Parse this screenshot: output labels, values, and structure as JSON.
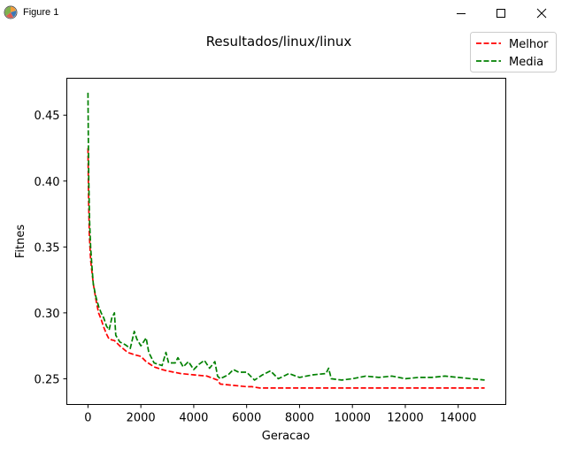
{
  "window": {
    "title": "Figure 1",
    "icon": "matplotlib-logo-icon",
    "controls": [
      "minimize-icon",
      "maximize-icon",
      "close-icon"
    ]
  },
  "chart_data": {
    "type": "line",
    "title": "Resultados/linux/linux",
    "xlabel": "Geracao",
    "ylabel": "Fitnes",
    "xlim": [
      -800,
      15800
    ],
    "ylim": [
      0.2305,
      0.478
    ],
    "xticks": [
      0,
      2000,
      4000,
      6000,
      8000,
      10000,
      12000,
      14000
    ],
    "yticks": [
      0.25,
      0.3,
      0.35,
      0.4,
      0.45
    ],
    "ytick_labels": [
      "0.25",
      "0.30",
      "0.35",
      "0.40",
      "0.45"
    ],
    "grid": false,
    "legend_position": "top-right",
    "series": [
      {
        "name": "Melhor",
        "color": "#ff0000",
        "style": "dashed",
        "points": [
          [
            0,
            0.425
          ],
          [
            20,
            0.39
          ],
          [
            50,
            0.36
          ],
          [
            100,
            0.34
          ],
          [
            200,
            0.322
          ],
          [
            300,
            0.31
          ],
          [
            400,
            0.3
          ],
          [
            500,
            0.295
          ],
          [
            600,
            0.289
          ],
          [
            700,
            0.284
          ],
          [
            800,
            0.28
          ],
          [
            1000,
            0.279
          ],
          [
            1200,
            0.275
          ],
          [
            1500,
            0.27
          ],
          [
            1800,
            0.268
          ],
          [
            2000,
            0.267
          ],
          [
            2200,
            0.263
          ],
          [
            2500,
            0.259
          ],
          [
            2800,
            0.257
          ],
          [
            3000,
            0.256
          ],
          [
            3500,
            0.254
          ],
          [
            4000,
            0.253
          ],
          [
            4500,
            0.252
          ],
          [
            4900,
            0.249
          ],
          [
            5000,
            0.246
          ],
          [
            5500,
            0.245
          ],
          [
            6000,
            0.244
          ],
          [
            6200,
            0.244
          ],
          [
            6500,
            0.243
          ],
          [
            7000,
            0.243
          ],
          [
            8000,
            0.243
          ],
          [
            9000,
            0.243
          ],
          [
            10000,
            0.243
          ],
          [
            11000,
            0.243
          ],
          [
            12000,
            0.243
          ],
          [
            13000,
            0.243
          ],
          [
            14000,
            0.243
          ],
          [
            15000,
            0.243
          ]
        ]
      },
      {
        "name": "Media",
        "color": "#008000",
        "style": "dashed",
        "points": [
          [
            0,
            0.467
          ],
          [
            10,
            0.44
          ],
          [
            30,
            0.4
          ],
          [
            60,
            0.37
          ],
          [
            100,
            0.35
          ],
          [
            150,
            0.335
          ],
          [
            200,
            0.322
          ],
          [
            300,
            0.312
          ],
          [
            400,
            0.305
          ],
          [
            500,
            0.3
          ],
          [
            600,
            0.296
          ],
          [
            700,
            0.29
          ],
          [
            800,
            0.287
          ],
          [
            900,
            0.296
          ],
          [
            1000,
            0.3
          ],
          [
            1050,
            0.283
          ],
          [
            1200,
            0.278
          ],
          [
            1400,
            0.276
          ],
          [
            1600,
            0.273
          ],
          [
            1750,
            0.286
          ],
          [
            1850,
            0.28
          ],
          [
            2000,
            0.275
          ],
          [
            2100,
            0.278
          ],
          [
            2200,
            0.281
          ],
          [
            2300,
            0.27
          ],
          [
            2500,
            0.262
          ],
          [
            2800,
            0.26
          ],
          [
            2950,
            0.27
          ],
          [
            3050,
            0.262
          ],
          [
            3300,
            0.262
          ],
          [
            3400,
            0.266
          ],
          [
            3600,
            0.259
          ],
          [
            3800,
            0.263
          ],
          [
            4000,
            0.257
          ],
          [
            4200,
            0.261
          ],
          [
            4400,
            0.264
          ],
          [
            4600,
            0.258
          ],
          [
            4800,
            0.263
          ],
          [
            4900,
            0.252
          ],
          [
            5000,
            0.25
          ],
          [
            5300,
            0.253
          ],
          [
            5500,
            0.257
          ],
          [
            5700,
            0.255
          ],
          [
            6000,
            0.255
          ],
          [
            6300,
            0.249
          ],
          [
            6600,
            0.253
          ],
          [
            6900,
            0.256
          ],
          [
            7200,
            0.25
          ],
          [
            7600,
            0.254
          ],
          [
            8000,
            0.251
          ],
          [
            8500,
            0.253
          ],
          [
            9000,
            0.254
          ],
          [
            9100,
            0.258
          ],
          [
            9200,
            0.25
          ],
          [
            9600,
            0.249
          ],
          [
            10000,
            0.25
          ],
          [
            10500,
            0.252
          ],
          [
            11000,
            0.251
          ],
          [
            11500,
            0.252
          ],
          [
            12000,
            0.25
          ],
          [
            12500,
            0.251
          ],
          [
            13000,
            0.251
          ],
          [
            13500,
            0.252
          ],
          [
            14000,
            0.251
          ],
          [
            14500,
            0.25
          ],
          [
            15000,
            0.249
          ]
        ]
      }
    ]
  }
}
